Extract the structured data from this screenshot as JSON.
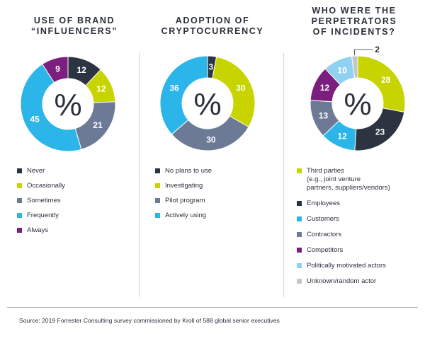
{
  "footer": {
    "source": "Source: 2019 Forrester Consulting survey commissioned by Kroll of 588 global senior executives"
  },
  "chart_data": [
    {
      "type": "pie",
      "title_lines": [
        "USE OF BRAND",
        "“INFLUENCERS”"
      ],
      "center_label": "%",
      "series": [
        {
          "name": "Never",
          "value": 12,
          "color": "#2b3440"
        },
        {
          "name": "Occasionally",
          "value": 12,
          "color": "#c8d400"
        },
        {
          "name": "Sometimes",
          "value": 21,
          "color": "#6d7a96"
        },
        {
          "name": "Frequently",
          "value": 45,
          "color": "#2bb5e8"
        },
        {
          "name": "Always",
          "value": 9,
          "color": "#7b1f7e"
        }
      ]
    },
    {
      "type": "pie",
      "title_lines": [
        "ADOPTION OF",
        "CRYPTOCURRENCY"
      ],
      "center_label": "%",
      "series": [
        {
          "name": "No plans to use",
          "value": 3,
          "color": "#2b3440"
        },
        {
          "name": "Investigating",
          "value": 30,
          "color": "#c8d400"
        },
        {
          "name": "Pilot program",
          "value": 30,
          "color": "#6d7a96"
        },
        {
          "name": "Actively using",
          "value": 36,
          "color": "#2bb5e8"
        }
      ]
    },
    {
      "type": "pie",
      "title_lines": [
        "WHO WERE THE",
        "PERPETRATORS",
        "OF INCIDENTS?"
      ],
      "center_label": "%",
      "series": [
        {
          "name": "Third parties\n(e.g., joint venture\npartners, suppliers/vendors)",
          "value": 28,
          "color": "#c8d400"
        },
        {
          "name": "Employees",
          "value": 23,
          "color": "#2b3440"
        },
        {
          "name": "Customers",
          "value": 12,
          "color": "#2bb5e8"
        },
        {
          "name": "Contractors",
          "value": 13,
          "color": "#6d7a96"
        },
        {
          "name": "Competitors",
          "value": 12,
          "color": "#7b1f7e"
        },
        {
          "name": "Politically motivated actors",
          "value": 10,
          "color": "#8fd1f0"
        },
        {
          "name": "Unknown/random actor",
          "value": 2,
          "color": "#c4c6c9"
        }
      ]
    }
  ]
}
